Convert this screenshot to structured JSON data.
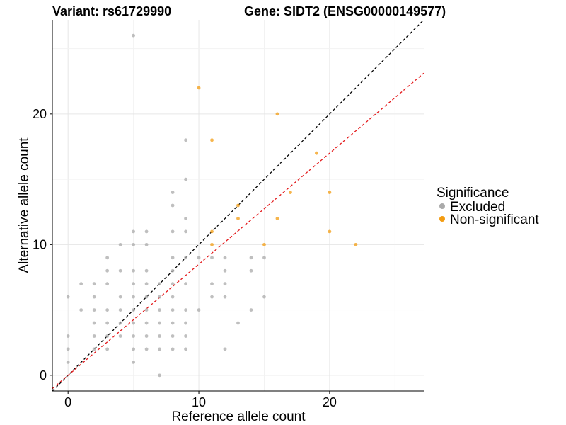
{
  "chart_data": {
    "type": "scatter",
    "title_left": "Variant: rs61729990",
    "title_right": "Gene: SIDT2 (ENSG00000149577)",
    "xlabel": "Reference allele count",
    "ylabel": "Alternative allele count",
    "xlim": [
      -1.2,
      27.2
    ],
    "ylim": [
      -1.2,
      27.2
    ],
    "xticks": [
      0,
      10,
      20
    ],
    "yticks": [
      0,
      10,
      20
    ],
    "grid": true,
    "legend": {
      "title": "Significance",
      "placement": "right",
      "entries": [
        {
          "label": "Excluded",
          "color": "#aaaaaa"
        },
        {
          "label": "Non-significant",
          "color": "#f39c12"
        }
      ]
    },
    "reference_lines": [
      {
        "name": "identity",
        "slope": 1,
        "intercept": 0,
        "color": "#000000",
        "dash": true
      },
      {
        "name": "fit",
        "slope": 0.85,
        "intercept": 0,
        "color": "#e41a1c",
        "dash": true
      }
    ],
    "series": [
      {
        "key": "excluded",
        "color": "#aaaaaa",
        "points": [
          [
            0,
            6
          ],
          [
            0,
            3
          ],
          [
            0,
            2
          ],
          [
            0,
            1
          ],
          [
            1,
            7
          ],
          [
            1,
            5
          ],
          [
            2,
            7
          ],
          [
            2,
            6
          ],
          [
            2,
            5
          ],
          [
            2,
            4
          ],
          [
            2,
            3
          ],
          [
            2,
            2
          ],
          [
            3,
            9
          ],
          [
            3,
            8
          ],
          [
            3,
            7
          ],
          [
            3,
            5
          ],
          [
            3,
            4
          ],
          [
            3,
            3
          ],
          [
            3,
            2
          ],
          [
            4,
            10
          ],
          [
            4,
            8
          ],
          [
            4,
            6
          ],
          [
            4,
            5
          ],
          [
            4,
            4
          ],
          [
            4,
            3
          ],
          [
            5,
            26
          ],
          [
            5,
            11
          ],
          [
            5,
            10
          ],
          [
            5,
            8
          ],
          [
            5,
            7
          ],
          [
            5,
            6
          ],
          [
            5,
            5
          ],
          [
            5,
            4
          ],
          [
            5,
            3
          ],
          [
            5,
            2
          ],
          [
            5,
            1
          ],
          [
            6,
            11
          ],
          [
            6,
            10
          ],
          [
            6,
            8
          ],
          [
            6,
            7
          ],
          [
            6,
            6
          ],
          [
            6,
            5
          ],
          [
            6,
            4
          ],
          [
            6,
            3
          ],
          [
            6,
            2
          ],
          [
            7,
            7
          ],
          [
            7,
            6
          ],
          [
            7,
            5
          ],
          [
            7,
            4
          ],
          [
            7,
            3
          ],
          [
            7,
            2
          ],
          [
            7,
            0
          ],
          [
            8,
            14
          ],
          [
            8,
            13
          ],
          [
            8,
            11
          ],
          [
            8,
            9
          ],
          [
            8,
            8
          ],
          [
            8,
            7
          ],
          [
            8,
            6
          ],
          [
            8,
            5
          ],
          [
            8,
            4
          ],
          [
            8,
            3
          ],
          [
            8,
            2
          ],
          [
            9,
            18
          ],
          [
            9,
            15
          ],
          [
            9,
            12
          ],
          [
            9,
            11
          ],
          [
            9,
            9
          ],
          [
            9,
            7
          ],
          [
            9,
            5
          ],
          [
            9,
            4
          ],
          [
            9,
            3
          ],
          [
            9,
            2
          ],
          [
            10,
            9
          ],
          [
            10,
            5
          ],
          [
            11,
            9
          ],
          [
            11,
            7
          ],
          [
            11,
            6
          ],
          [
            12,
            9
          ],
          [
            12,
            8
          ],
          [
            12,
            7
          ],
          [
            12,
            6
          ],
          [
            12,
            2
          ],
          [
            13,
            4
          ],
          [
            14,
            9
          ],
          [
            14,
            8
          ],
          [
            14,
            5
          ],
          [
            15,
            9
          ],
          [
            15,
            6
          ]
        ]
      },
      {
        "key": "non_significant",
        "color": "#f39c12",
        "points": [
          [
            10,
            22
          ],
          [
            11,
            18
          ],
          [
            11,
            11
          ],
          [
            11,
            10
          ],
          [
            13,
            13
          ],
          [
            13,
            12
          ],
          [
            15,
            10
          ],
          [
            16,
            20
          ],
          [
            16,
            12
          ],
          [
            17,
            14
          ],
          [
            19,
            17
          ],
          [
            20,
            14
          ],
          [
            20,
            11
          ],
          [
            22,
            10
          ]
        ]
      }
    ]
  }
}
